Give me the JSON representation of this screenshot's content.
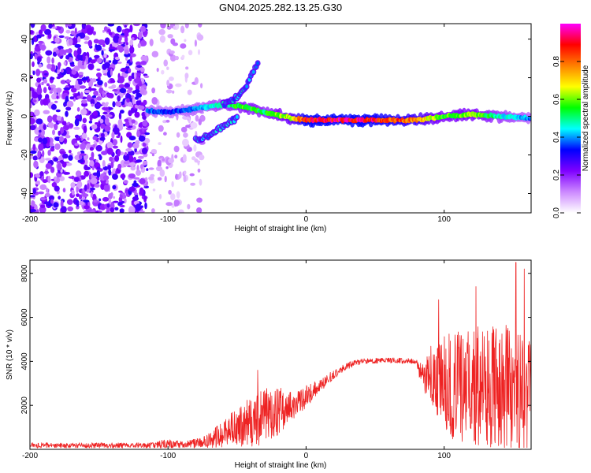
{
  "figure": {
    "title": "GN04.2025.282.13.25.G30"
  },
  "colors": {
    "snr_line": "#ee2222",
    "axis": "#000000",
    "background": "#ffffff"
  },
  "chart_data": [
    {
      "type": "heatmap",
      "name": "spectrogram",
      "xlabel": "Height of straight line (km)",
      "ylabel": "Frequency (Hz)",
      "xlim": [
        -200,
        163
      ],
      "ylim": [
        -50,
        48
      ],
      "xticks": [
        -200,
        -100,
        0,
        100
      ],
      "yticks": [
        -40,
        -20,
        0,
        20,
        40
      ],
      "colorbar": {
        "label": "Normalized spectral amplitude",
        "range": [
          0,
          1
        ],
        "ticks": [
          "0.0",
          "0.2",
          "0.4",
          "0.6",
          "0.8"
        ],
        "tick_values": [
          0.0,
          0.2,
          0.4,
          0.6,
          0.8
        ],
        "colormap": [
          "#ffffff",
          "#cc88ff",
          "#7f00ff",
          "#0000ff",
          "#00ffff",
          "#00ff00",
          "#ffff00",
          "#ff8000",
          "#ff0000",
          "#ff00ff"
        ]
      },
      "noise_region": {
        "x_range": [
          -200,
          -115
        ],
        "freq_range": [
          -50,
          48
        ]
      },
      "weak_noise_region": {
        "x_range": [
          -113,
          -75
        ],
        "freq_range": [
          -50,
          48
        ]
      },
      "signal_track": {
        "x": [
          -115,
          -100,
          -80,
          -60,
          -45,
          -30,
          -10,
          0,
          20,
          40,
          60,
          80,
          100,
          120,
          140,
          163
        ],
        "freq": [
          3,
          2,
          4,
          6,
          5,
          2,
          -1,
          -2,
          -2,
          -2,
          -2,
          -2,
          0,
          1,
          0,
          -1
        ],
        "amplitude": [
          0.4,
          0.35,
          0.4,
          0.5,
          0.6,
          0.55,
          0.7,
          0.95,
          0.95,
          0.95,
          0.9,
          0.8,
          0.6,
          0.65,
          0.5,
          0.4
        ]
      },
      "side_branches": [
        {
          "x": [
            -60,
            -50,
            -45,
            -40,
            -35
          ],
          "freq": [
            6,
            10,
            14,
            20,
            28
          ]
        },
        {
          "x": [
            -80,
            -70,
            -60,
            -55,
            -50
          ],
          "freq": [
            -12,
            -10,
            -5,
            -3,
            -1
          ]
        }
      ]
    },
    {
      "type": "line",
      "name": "snr",
      "xlabel": "Height of straight line (km)",
      "ylabel": "SNR (10 * v/v)",
      "xlim": [
        -200,
        163
      ],
      "ylim": [
        0,
        8600
      ],
      "xticks": [
        -200,
        -100,
        0,
        100
      ],
      "yticks": [
        2000,
        4000,
        6000,
        8000
      ],
      "envelope": {
        "x": [
          -200,
          -150,
          -110,
          -100,
          -90,
          -75,
          -60,
          -50,
          -40,
          -30,
          -20,
          -10,
          0,
          10,
          20,
          30,
          40,
          60,
          80,
          82,
          90,
          100,
          110,
          120,
          130,
          140,
          150,
          163
        ],
        "base": [
          180,
          180,
          180,
          250,
          200,
          300,
          700,
          1000,
          1300,
          1500,
          1700,
          2000,
          2400,
          2900,
          3400,
          3800,
          4000,
          4050,
          4000,
          3600,
          3300,
          3000,
          2800,
          2800,
          2800,
          2800,
          2800,
          2800
        ],
        "amp": [
          120,
          120,
          130,
          250,
          150,
          250,
          600,
          900,
          1200,
          1300,
          1100,
          700,
          500,
          300,
          200,
          150,
          120,
          120,
          120,
          350,
          1500,
          2200,
          2600,
          2800,
          2800,
          3000,
          3200,
          3000
        ]
      },
      "peaks": [
        {
          "x": -35,
          "y": 3600
        },
        {
          "x": 96,
          "y": 6800
        },
        {
          "x": 123,
          "y": 7400
        },
        {
          "x": 152,
          "y": 8500
        },
        {
          "x": 158,
          "y": 8200
        }
      ]
    }
  ]
}
